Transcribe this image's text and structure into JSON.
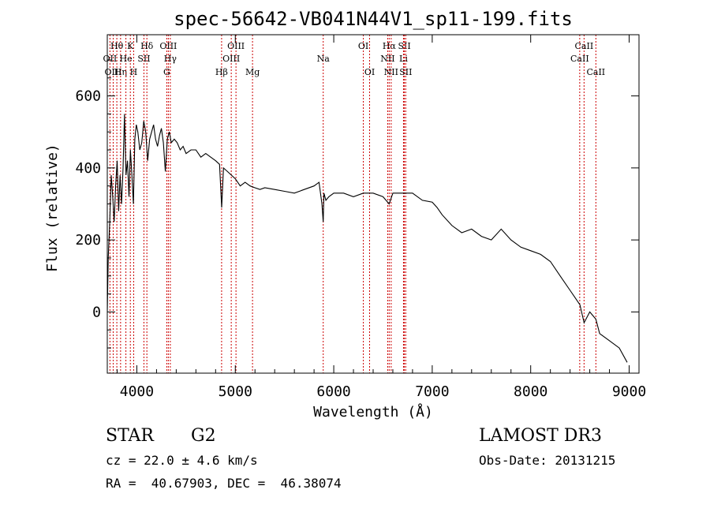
{
  "chart_data": {
    "type": "line",
    "title": "spec-56642-VB041N44V1_sp11-199.fits",
    "xlabel": "Wavelength (Å)",
    "ylabel": "Flux (relative)",
    "xlim": [
      3700,
      9100
    ],
    "ylim": [
      -170,
      770
    ],
    "xticks": [
      4000,
      5000,
      6000,
      7000,
      8000,
      9000
    ],
    "xtick_labels": [
      "4000",
      "5000",
      "6000",
      "7000",
      "8000",
      "9000"
    ],
    "yticks": [
      0,
      200,
      400,
      600
    ],
    "ytick_labels": [
      "0",
      "200",
      "400",
      "600"
    ],
    "series": [
      {
        "name": "spectrum",
        "x": [
          3700,
          3710,
          3725,
          3740,
          3755,
          3770,
          3785,
          3800,
          3815,
          3830,
          3845,
          3860,
          3875,
          3890,
          3905,
          3920,
          3935,
          3950,
          3965,
          3980,
          3995,
          4010,
          4030,
          4050,
          4070,
          4090,
          4110,
          4130,
          4150,
          4170,
          4190,
          4210,
          4230,
          4250,
          4270,
          4290,
          4310,
          4330,
          4350,
          4380,
          4410,
          4440,
          4470,
          4500,
          4550,
          4600,
          4650,
          4700,
          4750,
          4800,
          4840,
          4862,
          4880,
          4920,
          4960,
          5000,
          5050,
          5100,
          5150,
          5200,
          5250,
          5300,
          5400,
          5500,
          5600,
          5700,
          5800,
          5850,
          5880,
          5893,
          5900,
          5920,
          5950,
          6000,
          6100,
          6200,
          6300,
          6400,
          6500,
          6563,
          6600,
          6700,
          6800,
          6900,
          7000,
          7050,
          7100,
          7200,
          7300,
          7400,
          7500,
          7600,
          7700,
          7800,
          7900,
          8000,
          8100,
          8200,
          8300,
          8400,
          8450,
          8500,
          8542,
          8600,
          8662,
          8700,
          8800,
          8900,
          8980
        ],
        "values": [
          0,
          150,
          250,
          380,
          320,
          250,
          350,
          420,
          280,
          380,
          300,
          400,
          550,
          380,
          420,
          320,
          450,
          380,
          300,
          480,
          520,
          500,
          450,
          470,
          530,
          500,
          420,
          480,
          500,
          520,
          480,
          460,
          490,
          510,
          470,
          390,
          480,
          500,
          470,
          480,
          470,
          450,
          460,
          440,
          450,
          450,
          430,
          440,
          430,
          420,
          410,
          290,
          400,
          390,
          380,
          370,
          350,
          360,
          350,
          345,
          340,
          345,
          340,
          335,
          330,
          340,
          350,
          360,
          300,
          250,
          330,
          310,
          320,
          330,
          330,
          320,
          330,
          330,
          320,
          300,
          330,
          330,
          330,
          310,
          305,
          290,
          270,
          240,
          220,
          230,
          210,
          200,
          230,
          200,
          180,
          170,
          160,
          140,
          100,
          60,
          40,
          20,
          -30,
          0,
          -20,
          -60,
          -80,
          -100,
          -140
        ]
      }
    ],
    "lines": [
      {
        "label": "Hθ",
        "x": 3797,
        "row": 1
      },
      {
        "label": "OII",
        "x": 3727,
        "row": 2
      },
      {
        "label": "OIII",
        "x": 3760,
        "row": 3
      },
      {
        "label": "Hη",
        "x": 3835,
        "row": 3
      },
      {
        "label": "He",
        "x": 3889,
        "row": 2
      },
      {
        "label": "K",
        "x": 3934,
        "row": 1
      },
      {
        "label": "SII",
        "x": 4072,
        "row": 2
      },
      {
        "label": "H",
        "x": 3968,
        "row": 3
      },
      {
        "label": "Hδ",
        "x": 4102,
        "row": 1
      },
      {
        "label": "OIII",
        "x": 4320,
        "row": 1
      },
      {
        "label": "Hγ",
        "x": 4340,
        "row": 2
      },
      {
        "label": "G",
        "x": 4304,
        "row": 3
      },
      {
        "label": "Hβ",
        "x": 4861,
        "row": 3
      },
      {
        "label": "OIII",
        "x": 5007,
        "row": 1
      },
      {
        "label": "OIII",
        "x": 4959,
        "row": 2
      },
      {
        "label": "Mg",
        "x": 5175,
        "row": 3
      },
      {
        "label": "Na",
        "x": 5893,
        "row": 2
      },
      {
        "label": "OI",
        "x": 6300,
        "row": 1
      },
      {
        "label": "OI",
        "x": 6364,
        "row": 3
      },
      {
        "label": "Hα",
        "x": 6563,
        "row": 1
      },
      {
        "label": "SII",
        "x": 6717,
        "row": 1
      },
      {
        "label": "NII",
        "x": 6548,
        "row": 2
      },
      {
        "label": "Li",
        "x": 6708,
        "row": 2
      },
      {
        "label": "NII",
        "x": 6583,
        "row": 3
      },
      {
        "label": "SII",
        "x": 6731,
        "row": 3
      },
      {
        "label": "CaII",
        "x": 8542,
        "row": 1
      },
      {
        "label": "CaII",
        "x": 8498,
        "row": 2
      },
      {
        "label": "CaII",
        "x": 8662,
        "row": 3
      }
    ]
  },
  "info": {
    "class_label": "STAR",
    "subclass_label": "G2",
    "survey_label": "LAMOST DR3",
    "redshift": "cz = 22.0 ± 4.6 km/s",
    "obs_date": "Obs-Date: 20131215",
    "coords": "RA =  40.67903, DEC =  46.38074"
  }
}
